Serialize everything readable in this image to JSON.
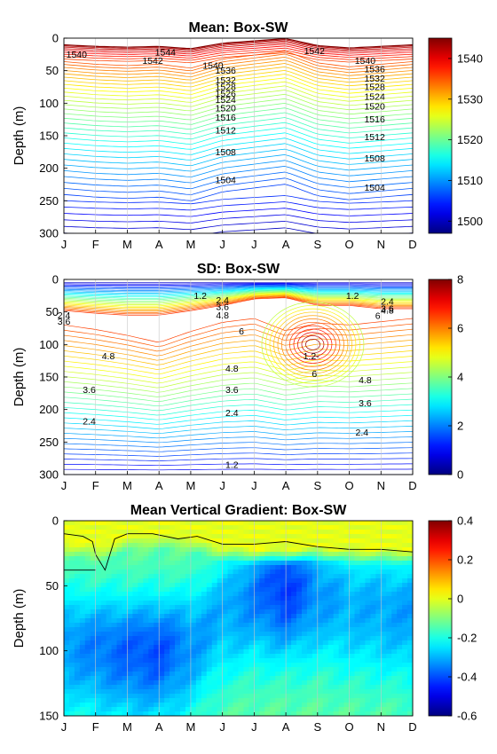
{
  "chart_data": [
    {
      "type": "heatmap",
      "subtype": "contour",
      "title": "Mean: Box-SW",
      "ylabel": "Depth (m)",
      "x_tick_labels": [
        "J",
        "F",
        "M",
        "A",
        "M",
        "J",
        "J",
        "A",
        "S",
        "O",
        "N",
        "D"
      ],
      "y_ticks": [
        0,
        50,
        100,
        150,
        200,
        250,
        300
      ],
      "ylim": [
        300,
        0
      ],
      "y_reversed": true,
      "colorbar": {
        "ticks": [
          1500,
          1510,
          1520,
          1530,
          1540
        ],
        "range": [
          1497,
          1545
        ],
        "colormap": "jet"
      },
      "contour_labels": [
        {
          "text": "1540",
          "x": 1.4,
          "depth": 25
        },
        {
          "text": "1544",
          "x": 4.2,
          "depth": 22
        },
        {
          "text": "1542",
          "x": 3.8,
          "depth": 35
        },
        {
          "text": "1542",
          "x": 8.9,
          "depth": 20
        },
        {
          "text": "1540",
          "x": 5.7,
          "depth": 42
        },
        {
          "text": "1536",
          "x": 6.1,
          "depth": 50
        },
        {
          "text": "1532",
          "x": 6.1,
          "depth": 65
        },
        {
          "text": "1528",
          "x": 6.1,
          "depth": 75
        },
        {
          "text": "1526",
          "x": 6.1,
          "depth": 85
        },
        {
          "text": "1524",
          "x": 6.1,
          "depth": 95
        },
        {
          "text": "1520",
          "x": 6.1,
          "depth": 108
        },
        {
          "text": "1516",
          "x": 6.1,
          "depth": 122
        },
        {
          "text": "1512",
          "x": 6.1,
          "depth": 142
        },
        {
          "text": "1508",
          "x": 6.1,
          "depth": 175
        },
        {
          "text": "1504",
          "x": 6.1,
          "depth": 218
        },
        {
          "text": "1540",
          "x": 10.5,
          "depth": 35
        },
        {
          "text": "1536",
          "x": 10.8,
          "depth": 48
        },
        {
          "text": "1532",
          "x": 10.8,
          "depth": 62
        },
        {
          "text": "1528",
          "x": 10.8,
          "depth": 75
        },
        {
          "text": "1524",
          "x": 10.8,
          "depth": 90
        },
        {
          "text": "1520",
          "x": 10.8,
          "depth": 105
        },
        {
          "text": "1516",
          "x": 10.8,
          "depth": 125
        },
        {
          "text": "1512",
          "x": 10.8,
          "depth": 152
        },
        {
          "text": "1508",
          "x": 10.8,
          "depth": 185
        },
        {
          "text": "1504",
          "x": 10.8,
          "depth": 230
        }
      ]
    },
    {
      "type": "heatmap",
      "subtype": "contour",
      "title": "SD: Box-SW",
      "ylabel": "Depth (m)",
      "x_tick_labels": [
        "J",
        "F",
        "M",
        "A",
        "M",
        "J",
        "J",
        "A",
        "S",
        "O",
        "N",
        "D"
      ],
      "y_ticks": [
        0,
        50,
        100,
        150,
        200,
        250,
        300
      ],
      "ylim": [
        300,
        0
      ],
      "y_reversed": true,
      "colorbar": {
        "ticks": [
          0,
          2,
          4,
          6,
          8
        ],
        "range": [
          0,
          8
        ],
        "colormap": "jet"
      },
      "contour_labels": [
        {
          "text": "2.4",
          "x": 1.0,
          "depth": 55
        },
        {
          "text": "3.6",
          "x": 1.0,
          "depth": 65
        },
        {
          "text": "4.8",
          "x": 2.4,
          "depth": 118
        },
        {
          "text": "3.6",
          "x": 1.8,
          "depth": 170
        },
        {
          "text": "2.4",
          "x": 1.8,
          "depth": 218
        },
        {
          "text": "1.2",
          "x": 5.3,
          "depth": 25
        },
        {
          "text": "2.4",
          "x": 6.0,
          "depth": 32
        },
        {
          "text": "3.6",
          "x": 6.0,
          "depth": 42
        },
        {
          "text": "4.8",
          "x": 6.0,
          "depth": 55
        },
        {
          "text": "6",
          "x": 6.6,
          "depth": 80
        },
        {
          "text": "4.8",
          "x": 6.3,
          "depth": 137
        },
        {
          "text": "3.6",
          "x": 6.3,
          "depth": 170
        },
        {
          "text": "2.4",
          "x": 6.3,
          "depth": 205
        },
        {
          "text": "1.2",
          "x": 6.3,
          "depth": 285
        },
        {
          "text": "1.2-",
          "x": 8.8,
          "depth": 118
        },
        {
          "text": "6",
          "x": 8.9,
          "depth": 145
        },
        {
          "text": "1.2",
          "x": 10.1,
          "depth": 25
        },
        {
          "text": "2.4",
          "x": 11.2,
          "depth": 34
        },
        {
          "text": "3.6",
          "x": 11.2,
          "depth": 45
        },
        {
          "text": "4.8",
          "x": 11.2,
          "depth": 48
        },
        {
          "text": "6",
          "x": 10.9,
          "depth": 56
        },
        {
          "text": "4.8",
          "x": 10.5,
          "depth": 155
        },
        {
          "text": "3.6",
          "x": 10.5,
          "depth": 190
        },
        {
          "text": "2.4",
          "x": 10.4,
          "depth": 235
        }
      ]
    },
    {
      "type": "heatmap",
      "title": "Mean Vertical Gradient: Box-SW",
      "ylabel": "Depth (m)",
      "x_tick_labels": [
        "J",
        "F",
        "M",
        "A",
        "M",
        "J",
        "J",
        "A",
        "S",
        "O",
        "N",
        "D"
      ],
      "y_ticks": [
        0,
        50,
        100,
        150
      ],
      "ylim": [
        150,
        0
      ],
      "y_reversed": true,
      "colorbar": {
        "ticks": [
          0.4,
          0.2,
          0,
          -0.2,
          -0.4,
          -0.6
        ],
        "range": [
          -0.6,
          0.4
        ],
        "colormap": "jet"
      },
      "zero_contour": "black line separating near-zero (yellow) surface layer, about 10–20 m deep in Jan–Mar and about 25 m elsewhere"
    }
  ]
}
